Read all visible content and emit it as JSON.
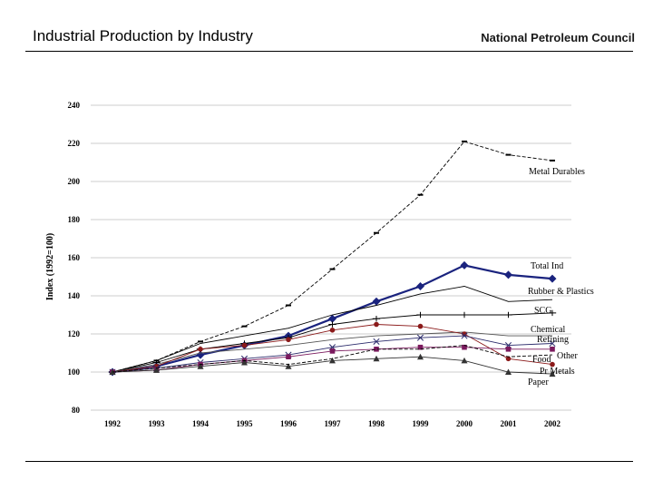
{
  "slide": {
    "title": "Industrial Production by Industry",
    "brand": "National Petroleum Council"
  },
  "chart_data": {
    "type": "line",
    "title": "",
    "xlabel": "",
    "ylabel": "Index (1992=100)",
    "ylim": [
      80,
      240
    ],
    "yticks": [
      80,
      100,
      120,
      140,
      160,
      180,
      200,
      220,
      240
    ],
    "categories": [
      "1992",
      "1993",
      "1994",
      "1995",
      "1996",
      "1997",
      "1998",
      "1999",
      "2000",
      "2001",
      "2002"
    ],
    "grid": true,
    "series": [
      {
        "name": "Metal Durables",
        "color": "#000000",
        "marker": "dash",
        "dashed": true,
        "bold": false,
        "values": [
          100,
          106,
          116,
          124,
          135,
          154,
          173,
          193,
          221,
          214,
          211
        ]
      },
      {
        "name": "Total Ind",
        "color": "#1a237e",
        "marker": "diamond",
        "dashed": false,
        "bold": true,
        "values": [
          100,
          103,
          109,
          114,
          119,
          128,
          137,
          145,
          156,
          151,
          149
        ]
      },
      {
        "name": "Rubber & Plastics",
        "color": "#000000",
        "marker": "none",
        "dashed": false,
        "bold": false,
        "values": [
          100,
          106,
          115,
          119,
          123,
          130,
          135,
          141,
          145,
          137,
          138
        ]
      },
      {
        "name": "SCG",
        "color": "#000000",
        "marker": "plus",
        "dashed": false,
        "bold": false,
        "values": [
          100,
          105,
          112,
          115,
          118,
          125,
          128,
          130,
          130,
          130,
          131
        ]
      },
      {
        "name": "Chemical",
        "color": "#555555",
        "marker": "none",
        "dashed": false,
        "bold": false,
        "values": [
          100,
          104,
          110,
          112,
          114,
          117,
          119,
          120,
          121,
          119,
          119
        ]
      },
      {
        "name": "Refining",
        "color": "#8b1a1a",
        "marker": "circle",
        "dashed": false,
        "bold": false,
        "values": [
          100,
          103,
          112,
          114,
          117,
          122,
          125,
          124,
          120,
          107,
          104
        ]
      },
      {
        "name": "Other",
        "color": "#2b2b6b",
        "marker": "x",
        "dashed": false,
        "bold": false,
        "values": [
          100,
          102,
          105,
          107,
          109,
          113,
          116,
          118,
          119,
          114,
          115
        ]
      },
      {
        "name": "Food",
        "color": "#7b1a5e",
        "marker": "square",
        "dashed": false,
        "bold": false,
        "values": [
          100,
          101,
          104,
          106,
          108,
          111,
          112,
          113,
          113,
          112,
          112
        ]
      },
      {
        "name": "Pr Metals",
        "color": "#333333",
        "marker": "triangle",
        "dashed": false,
        "bold": false,
        "values": [
          100,
          101,
          103,
          105,
          103,
          106,
          107,
          108,
          106,
          100,
          99
        ]
      },
      {
        "name": "Paper",
        "color": "#000000",
        "marker": "none",
        "dashed": true,
        "bold": false,
        "values": [
          100,
          102,
          104,
          106,
          104,
          107,
          112,
          112,
          114,
          108,
          109
        ]
      }
    ],
    "labels": [
      {
        "series": "Metal Durables",
        "text": "Metal Durables"
      },
      {
        "series": "Total Ind",
        "text": "Total Ind"
      },
      {
        "series": "Rubber & Plastics",
        "text": "Rubber & Plastics"
      },
      {
        "series": "SCG",
        "text": "SCG"
      },
      {
        "series": "Chemical",
        "text": "Chemical"
      },
      {
        "series": "Refining",
        "text": "Refining"
      },
      {
        "series": "Other",
        "text": "Other"
      },
      {
        "series": "Food",
        "text": "Food"
      },
      {
        "series": "Pr Metals",
        "text": "Pr Metals"
      },
      {
        "series": "Paper",
        "text": "Paper"
      }
    ]
  }
}
